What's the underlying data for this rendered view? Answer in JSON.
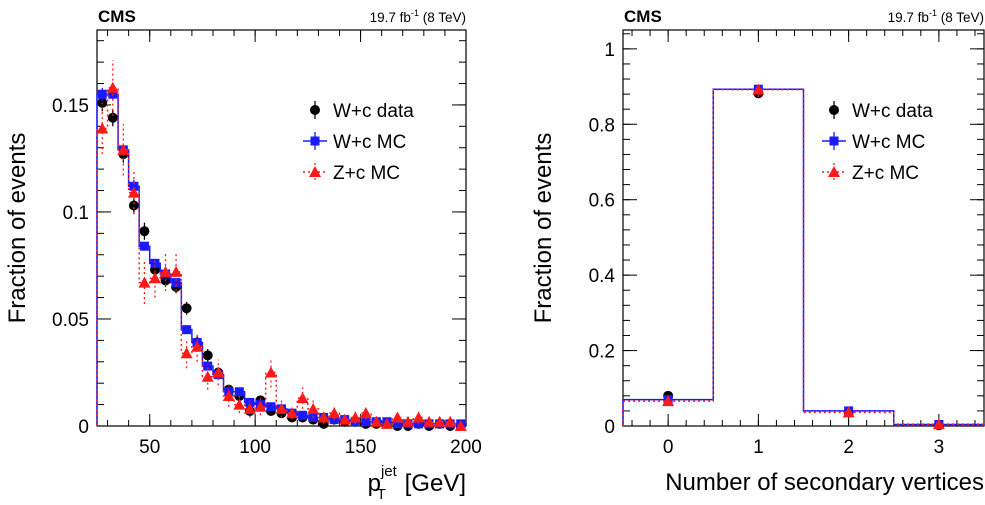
{
  "chart_data": [
    {
      "type": "line",
      "experiment": "CMS",
      "lumi": "19.7 fb",
      "lumi_sup": "-1",
      "lumi_energy": "(8 TeV)",
      "ylabel": "Fraction of events",
      "xlabel": {
        "base": "p",
        "sup": "jet",
        "sub": "T",
        "unit": " [GeV]"
      },
      "xlim": [
        25,
        200
      ],
      "ylim": [
        0,
        0.185
      ],
      "xticks": [
        50,
        100,
        150,
        200
      ],
      "xtick_labels": [
        "50",
        "100",
        "150",
        "200"
      ],
      "yticks": [
        0,
        0.05,
        0.1,
        0.15
      ],
      "ytick_labels": [
        "0",
        "0.05",
        "0.1",
        "0.15"
      ],
      "legend": {
        "position": "top-right",
        "entries": [
          "W+c data",
          "W+c MC",
          "Z+c MC"
        ]
      },
      "bin_edges": [
        25,
        30,
        35,
        40,
        45,
        50,
        55,
        60,
        65,
        70,
        75,
        80,
        85,
        90,
        95,
        100,
        105,
        110,
        115,
        120,
        125,
        130,
        135,
        140,
        145,
        150,
        155,
        160,
        165,
        170,
        175,
        180,
        185,
        190,
        195,
        200
      ],
      "series": [
        {
          "name": "W+c data",
          "style": "points",
          "color": "#000000",
          "values": [
            0.151,
            0.144,
            0.127,
            0.103,
            0.091,
            0.073,
            0.068,
            0.065,
            0.055,
            0.039,
            0.033,
            0.025,
            0.017,
            0.014,
            0.007,
            0.012,
            0.007,
            0.006,
            0.004,
            0.004,
            0.003,
            0.001,
            0.003,
            0.002,
            0.002,
            0.001,
            0.001,
            0.001,
            0.0,
            0.0,
            0.001,
            0.0,
            0.001,
            0.0,
            0.0
          ],
          "errors": [
            0.004,
            0.004,
            0.004,
            0.004,
            0.004,
            0.003,
            0.003,
            0.003,
            0.003,
            0.003,
            0.003,
            0.002,
            0.002,
            0.002,
            0.002,
            0.002,
            0.002,
            0.002,
            0.001,
            0.001,
            0.001,
            0.001,
            0.001,
            0.001,
            0.001,
            0.001,
            0.001,
            0.001,
            0.001,
            0.001,
            0.001,
            0.001,
            0.001,
            0.001,
            0.001
          ]
        },
        {
          "name": "W+c MC",
          "style": "histogram",
          "color": "#1a1aff",
          "values": [
            0.155,
            0.155,
            0.129,
            0.112,
            0.084,
            0.076,
            0.071,
            0.067,
            0.045,
            0.039,
            0.028,
            0.024,
            0.016,
            0.016,
            0.011,
            0.01,
            0.009,
            0.008,
            0.006,
            0.005,
            0.004,
            0.004,
            0.003,
            0.003,
            0.002,
            0.002,
            0.002,
            0.002,
            0.001,
            0.001,
            0.001,
            0.001,
            0.001,
            0.001,
            0.001
          ],
          "errors": [
            0.003,
            0.003,
            0.003,
            0.003,
            0.002,
            0.002,
            0.002,
            0.002,
            0.002,
            0.002,
            0.001,
            0.001,
            0.001,
            0.001,
            0.001,
            0.001,
            0.001,
            0.001,
            0.001,
            0.001,
            0.001,
            0.001,
            0.001,
            0.001,
            0.001,
            0.001,
            0.001,
            0.001,
            0.001,
            0.001,
            0.001,
            0.001,
            0.001,
            0.001,
            0.001
          ]
        },
        {
          "name": "Z+c MC",
          "style": "histogram-dotted",
          "color": "#ff1a1a",
          "values": [
            0.139,
            0.158,
            0.129,
            0.109,
            0.067,
            0.069,
            0.072,
            0.072,
            0.034,
            0.037,
            0.023,
            0.025,
            0.014,
            0.01,
            0.008,
            0.009,
            0.025,
            0.008,
            0.006,
            0.013,
            0.008,
            0.004,
            0.006,
            0.003,
            0.004,
            0.006,
            0.002,
            0.001,
            0.004,
            0.002,
            0.004,
            0.002,
            0.002,
            0.002,
            0.0
          ],
          "errors": [
            0.012,
            0.013,
            0.012,
            0.01,
            0.01,
            0.009,
            0.009,
            0.009,
            0.007,
            0.007,
            0.006,
            0.006,
            0.005,
            0.004,
            0.004,
            0.004,
            0.007,
            0.004,
            0.003,
            0.005,
            0.004,
            0.003,
            0.003,
            0.002,
            0.003,
            0.003,
            0.002,
            0.002,
            0.002,
            0.002,
            0.003,
            0.002,
            0.002,
            0.002,
            0.001
          ]
        }
      ]
    },
    {
      "type": "line",
      "experiment": "CMS",
      "lumi": "19.7 fb",
      "lumi_sup": "-1",
      "lumi_energy": "(8 TeV)",
      "ylabel": "Fraction of events",
      "xlabel": {
        "text": "Number of secondary vertices"
      },
      "xlim": [
        -0.5,
        3.5
      ],
      "ylim": [
        0,
        1.05
      ],
      "xticks": [
        0,
        1,
        2,
        3
      ],
      "xtick_labels": [
        "0",
        "1",
        "2",
        "3"
      ],
      "yticks": [
        0,
        0.2,
        0.4,
        0.6,
        0.8,
        1
      ],
      "ytick_labels": [
        "0",
        "0.2",
        "0.4",
        "0.6",
        "0.8",
        "1"
      ],
      "legend": {
        "position": "top-right",
        "entries": [
          "W+c data",
          "W+c MC",
          "Z+c MC"
        ]
      },
      "bin_edges": [
        -0.5,
        0.5,
        1.5,
        2.5,
        3.5
      ],
      "series": [
        {
          "name": "W+c data",
          "style": "points",
          "color": "#000000",
          "values": [
            0.08,
            0.882,
            0.036,
            0.002
          ],
          "errors": [
            0.006,
            0.01,
            0.005,
            0.002
          ]
        },
        {
          "name": "W+c MC",
          "style": "histogram",
          "color": "#1a1aff",
          "values": [
            0.07,
            0.893,
            0.04,
            0.004
          ],
          "errors": [
            0.003,
            0.005,
            0.003,
            0.001
          ]
        },
        {
          "name": "Z+c MC",
          "style": "histogram-dotted",
          "color": "#ff1a1a",
          "values": [
            0.066,
            0.892,
            0.036,
            0.005
          ],
          "errors": [
            0.008,
            0.02,
            0.007,
            0.002
          ]
        }
      ]
    }
  ]
}
